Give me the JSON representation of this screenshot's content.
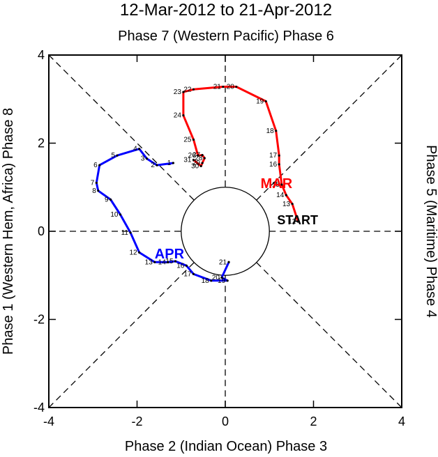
{
  "chart_data": {
    "type": "line",
    "title": "12-Mar-2012 to 21-Apr-2012",
    "top_label": "Phase 7 (Western Pacific) Phase 6",
    "bottom_label": "Phase 2 (Indian Ocean) Phase 3",
    "left_label": "Phase 1 (Western Hem, Africa) Phase 8",
    "right_label": "Phase 5 (Maritime) Phase 4",
    "xlim": [
      -4,
      4
    ],
    "ylim": [
      -4,
      4
    ],
    "xticks": [
      -4,
      -2,
      0,
      2,
      4
    ],
    "yticks": [
      -4,
      -2,
      0,
      2,
      4
    ],
    "xtick_labels": [
      "-4",
      "-2",
      "0",
      "2",
      "4"
    ],
    "ytick_labels": [
      "-4",
      "-2",
      "0",
      "2",
      "4"
    ],
    "unit_circle_radius": 1,
    "start_label": "START",
    "series": [
      {
        "name": "MAR",
        "color": "#ff0000",
        "label_at": [
          0.8,
          0.98
        ],
        "points": [
          {
            "day": "12",
            "x": 1.65,
            "y": 0.22
          },
          {
            "day": "13",
            "x": 1.52,
            "y": 0.62
          },
          {
            "day": "14",
            "x": 1.38,
            "y": 0.82
          },
          {
            "day": "15",
            "x": 1.28,
            "y": 1.06
          },
          {
            "day": "16",
            "x": 1.22,
            "y": 1.52
          },
          {
            "day": "17",
            "x": 1.22,
            "y": 1.72
          },
          {
            "day": "18",
            "x": 1.15,
            "y": 2.28
          },
          {
            "day": "19",
            "x": 0.92,
            "y": 2.95
          },
          {
            "day": "20",
            "x": 0.25,
            "y": 3.28
          },
          {
            "day": "21",
            "x": -0.05,
            "y": 3.28
          },
          {
            "day": "22",
            "x": -0.72,
            "y": 3.22
          },
          {
            "day": "23",
            "x": -0.95,
            "y": 3.16
          },
          {
            "day": "24",
            "x": -0.95,
            "y": 2.63
          },
          {
            "day": "25",
            "x": -0.72,
            "y": 2.08
          },
          {
            "day": "26",
            "x": -0.62,
            "y": 1.72
          },
          {
            "day": "27",
            "x": -0.52,
            "y": 1.73
          },
          {
            "day": "28",
            "x": -0.47,
            "y": 1.66
          },
          {
            "day": "29",
            "x": -0.52,
            "y": 1.55
          },
          {
            "day": "30",
            "x": -0.55,
            "y": 1.48
          },
          {
            "day": "31",
            "x": -0.72,
            "y": 1.62
          }
        ]
      },
      {
        "name": "APR",
        "color": "#0000ff",
        "label_at": [
          -1.6,
          -0.62
        ],
        "points": [
          {
            "day": "1",
            "x": -1.18,
            "y": 1.55
          },
          {
            "day": "2",
            "x": -1.55,
            "y": 1.5
          },
          {
            "day": "3",
            "x": -1.78,
            "y": 1.65
          },
          {
            "day": "4",
            "x": -1.95,
            "y": 1.87
          },
          {
            "day": "5",
            "x": -2.45,
            "y": 1.72
          },
          {
            "day": "6",
            "x": -2.85,
            "y": 1.5
          },
          {
            "day": "7",
            "x": -2.92,
            "y": 1.1
          },
          {
            "day": "8",
            "x": -2.88,
            "y": 0.92
          },
          {
            "day": "9",
            "x": -2.6,
            "y": 0.72
          },
          {
            "day": "10",
            "x": -2.38,
            "y": 0.38
          },
          {
            "day": "11",
            "x": -2.15,
            "y": -0.03
          },
          {
            "day": "12",
            "x": -1.95,
            "y": -0.48
          },
          {
            "day": "13",
            "x": -1.6,
            "y": -0.7
          },
          {
            "day": "14",
            "x": -1.3,
            "y": -0.7
          },
          {
            "day": "15",
            "x": -1.13,
            "y": -0.68
          },
          {
            "day": "16",
            "x": -0.88,
            "y": -0.78
          },
          {
            "day": "17",
            "x": -0.72,
            "y": -0.97
          },
          {
            "day": "18",
            "x": -0.32,
            "y": -1.12
          },
          {
            "day": "19",
            "x": 0.05,
            "y": -1.12
          },
          {
            "day": "20",
            "x": -0.08,
            "y": -1.05
          },
          {
            "day": "21",
            "x": 0.08,
            "y": -0.7
          }
        ]
      }
    ]
  }
}
